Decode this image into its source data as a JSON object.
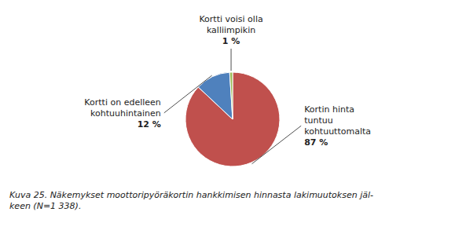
{
  "chart_data": {
    "type": "pie",
    "categories": [
      "Kortin hinta\ntuntuu\nkohtuuttomalta",
      "Kortti on edelleen\nkohtuuhintainen",
      "Kortti voisi olla\nkalliimpikin"
    ],
    "values": [
      87,
      12,
      1
    ],
    "value_labels": [
      "87 %",
      "12 %",
      "1 %"
    ],
    "data_labels": true,
    "colors": [
      "#c0504d",
      "#4f81bd",
      "#9bbb59"
    ],
    "caption": "Kuva 25. Näkemykset moottoripyöräkortin hankkimisen hinnasta lakimuutoksen jäl-\nkeen (N=1 338)."
  }
}
